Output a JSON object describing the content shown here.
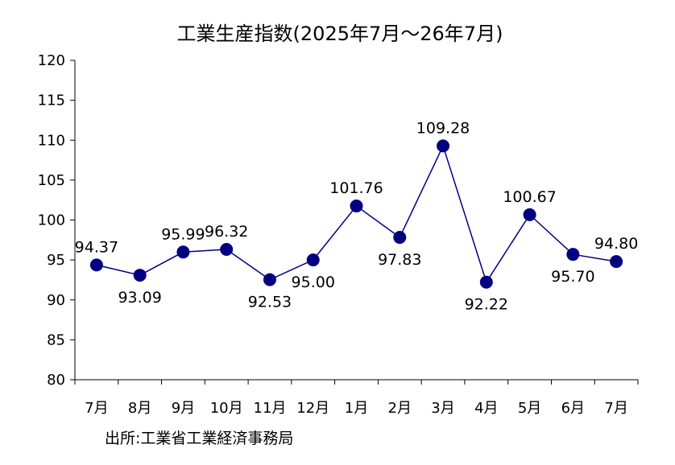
{
  "chart_data": {
    "type": "line",
    "title": "工業生産指数(2025年7月～26年7月)",
    "source": "出所:工業省工業経済事務局",
    "categories": [
      "7月",
      "8月",
      "9月",
      "10月",
      "11月",
      "12月",
      "1月",
      "2月",
      "3月",
      "4月",
      "5月",
      "6月",
      "7月"
    ],
    "series": [
      {
        "values": [
          94.37,
          93.09,
          95.99,
          96.32,
          92.53,
          95.0,
          101.76,
          97.83,
          109.28,
          92.22,
          100.67,
          95.7,
          94.8
        ],
        "labels": [
          "94.37",
          "93.09",
          "95.99",
          "96.32",
          "92.53",
          "95.00",
          "101.76",
          "97.83",
          "109.28",
          "92.22",
          "100.67",
          "95.70",
          "94.80"
        ],
        "color": "#000080"
      }
    ],
    "ylim": [
      80,
      120
    ],
    "yticks": [
      "80",
      "85",
      "90",
      "95",
      "100",
      "105",
      "110",
      "115",
      "120"
    ],
    "grid": false,
    "legend": "none"
  }
}
